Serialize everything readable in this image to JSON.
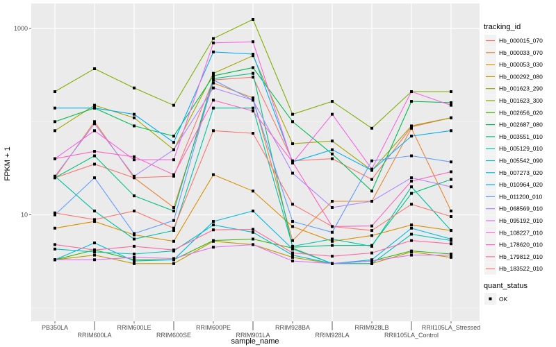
{
  "chart_data": {
    "type": "line",
    "title": "",
    "xlabel": "sample_name",
    "ylabel": "FPKM + 1",
    "yscale": "log10",
    "ylim": [
      2,
      1500
    ],
    "y_ticks": [
      {
        "value": 10,
        "label": "10"
      },
      {
        "value": 1000,
        "label": "1000"
      }
    ],
    "grid": true,
    "categories": [
      "PB350LA",
      "RRIM600LA",
      "RRIM600LE",
      "RRIM600SE",
      "RRIM600PE",
      "RRIM901LA",
      "RRIM928BA",
      "RRIM928LA",
      "RRIM928LB",
      "RRII105LA_Control",
      "RRII105LA_Stressed"
    ],
    "legend": {
      "position": "right",
      "title": "tracking_id",
      "shape_title": "quant_status",
      "shape_entries": [
        "OK"
      ]
    },
    "series": [
      {
        "name": "Hb_000015_070",
        "color": "#F8766D",
        "values": [
          25,
          35,
          25,
          26,
          280,
          300,
          38,
          40,
          24,
          88,
          110
        ]
      },
      {
        "name": "Hb_000033_070",
        "color": "#EA8331",
        "values": [
          25,
          100,
          25,
          12,
          260,
          180,
          5.3,
          14,
          14,
          85,
          11
        ]
      },
      {
        "name": "Hb_000053_030",
        "color": "#D89000",
        "values": [
          7.2,
          8.5,
          6.1,
          5.2,
          27,
          18,
          7.5,
          5.2,
          6,
          7.8,
          6.8
        ]
      },
      {
        "name": "Hb_000292_080",
        "color": "#C09B00",
        "values": [
          3.3,
          3.7,
          3,
          3,
          5.2,
          4.8,
          3.5,
          3,
          3,
          4,
          3.5
        ]
      },
      {
        "name": "Hb_001623_290",
        "color": "#A3A500",
        "values": [
          80,
          150,
          110,
          50,
          330,
          510,
          58,
          62,
          30,
          90,
          110
        ]
      },
      {
        "name": "Hb_001623_300",
        "color": "#7CAE00",
        "values": [
          210,
          370,
          230,
          150,
          780,
          1250,
          120,
          165,
          85,
          210,
          210
        ]
      },
      {
        "name": "Hb_002656_020",
        "color": "#39B600",
        "values": [
          3.3,
          4.2,
          3.3,
          3.3,
          5.3,
          5.5,
          4.4,
          3,
          3.2,
          4.1,
          3.8
        ]
      },
      {
        "name": "Hb_002687_080",
        "color": "#00BB4E",
        "values": [
          100,
          140,
          90,
          70,
          310,
          380,
          100,
          45,
          18,
          165,
          160
        ]
      },
      {
        "name": "Hb_003551_010",
        "color": "#00BF7D",
        "values": [
          25,
          43,
          16,
          11,
          290,
          330,
          4.5,
          4.7,
          4.7,
          17,
          24
        ]
      },
      {
        "name": "Hb_005129_010",
        "color": "#00C1A3",
        "values": [
          26,
          11,
          5.5,
          6.8,
          140,
          140,
          4.6,
          5.5,
          4.6,
          20,
          6.8
        ]
      },
      {
        "name": "Hb_005542_090",
        "color": "#00BFC4",
        "values": [
          4.3,
          4,
          3.8,
          4.1,
          7.8,
          6.5,
          3.7,
          3,
          3,
          6.2,
          5.3
        ]
      },
      {
        "name": "Hb_007273_020",
        "color": "#00B9E3",
        "values": [
          3.3,
          5,
          3.2,
          3.3,
          8.5,
          11,
          4.3,
          3,
          3.3,
          7.2,
          5.5
        ]
      },
      {
        "name": "Hb_010964_020",
        "color": "#00ADFA",
        "values": [
          140,
          140,
          120,
          60,
          560,
          530,
          37,
          50,
          30,
          70,
          80
        ]
      },
      {
        "name": "Hb_011200_010",
        "color": "#619CFF",
        "values": [
          10,
          25,
          6.3,
          8.7,
          280,
          170,
          8.5,
          6.5,
          38,
          43,
          37
        ]
      },
      {
        "name": "Hb_068569_010",
        "color": "#AE87FF",
        "values": [
          26,
          95,
          26,
          50,
          230,
          170,
          28,
          12,
          14,
          25,
          20
        ]
      },
      {
        "name": "Hb_095192_010",
        "color": "#DB72FB",
        "values": [
          3.3,
          3.3,
          3.5,
          3.4,
          4.5,
          4.8,
          3.2,
          3,
          3.2,
          3.7,
          3.7
        ]
      },
      {
        "name": "Hb_108227_010",
        "color": "#F564E3",
        "values": [
          40,
          80,
          39,
          39,
          700,
          720,
          36,
          120,
          31,
          210,
          150
        ]
      },
      {
        "name": "Hb_178620_010",
        "color": "#FF61C3",
        "values": [
          40,
          48,
          42,
          27,
          170,
          130,
          37,
          7.5,
          7.6,
          23,
          29
        ]
      },
      {
        "name": "Hb_179812_010",
        "color": "#FF689F",
        "values": [
          4.8,
          4.2,
          4.6,
          4.2,
          6.9,
          7,
          3.9,
          3.6,
          3.9,
          5.3,
          4.9
        ]
      },
      {
        "name": "Hb_183522_010",
        "color": "#F8766D",
        "values": [
          10.5,
          8.9,
          11,
          7.2,
          80,
          75,
          13,
          7.5,
          6.8,
          13,
          9.6
        ]
      }
    ]
  }
}
